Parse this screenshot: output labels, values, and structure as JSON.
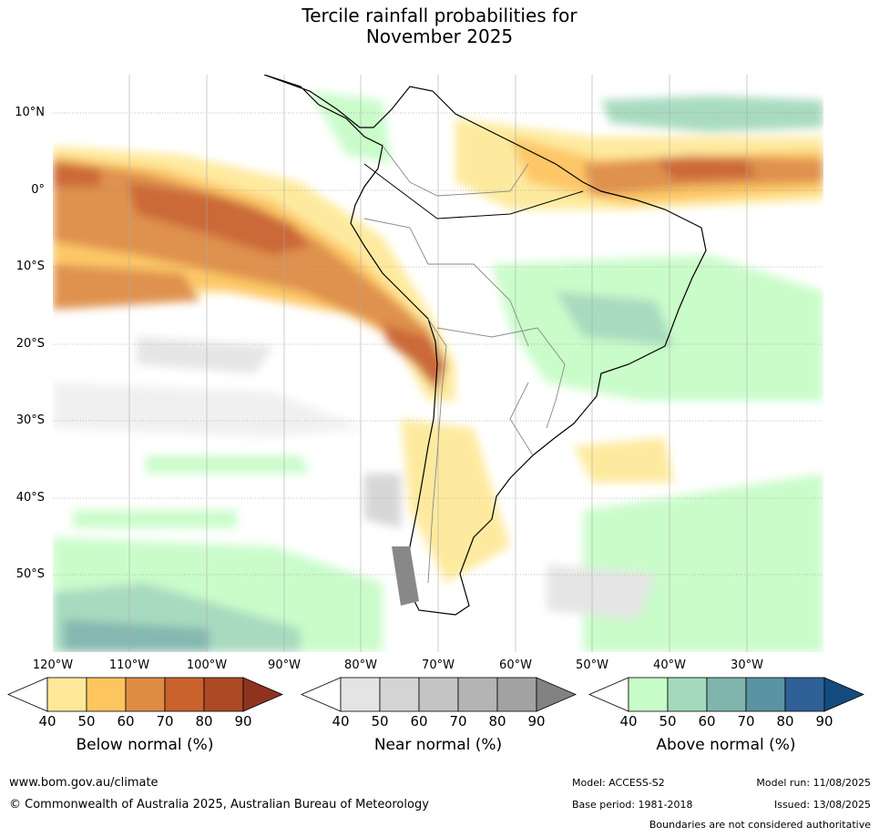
{
  "title": {
    "line1": "Tercile rainfall probabilities for",
    "line2": "November 2025"
  },
  "lat_labels": [
    "10°N",
    "0°",
    "10°S",
    "20°S",
    "30°S",
    "40°S",
    "50°S"
  ],
  "lon_labels": [
    "120°W",
    "110°W",
    "100°W",
    "90°W",
    "80°W",
    "70°W",
    "60°W",
    "50°W",
    "40°W",
    "30°W"
  ],
  "colorbars": [
    {
      "label": "Below normal (%)",
      "ticks": [
        "40",
        "50",
        "60",
        "70",
        "80",
        "90"
      ],
      "colors": [
        "#ffffff",
        "#fee99a",
        "#fdc55e",
        "#de8c44",
        "#c9622d",
        "#ad4a26",
        "#8f3320"
      ]
    },
    {
      "label": "Near normal (%)",
      "ticks": [
        "40",
        "50",
        "60",
        "70",
        "80",
        "90"
      ],
      "colors": [
        "#ffffff",
        "#e4e4e4",
        "#d4d4d4",
        "#c4c4c4",
        "#b4b4b4",
        "#a2a2a2",
        "#828282"
      ]
    },
    {
      "label": "Above normal (%)",
      "ticks": [
        "40",
        "50",
        "60",
        "70",
        "80",
        "90"
      ],
      "colors": [
        "#ffffff",
        "#c8fcc8",
        "#a4d9bc",
        "#7fb5ad",
        "#5a93a1",
        "#2f6096",
        "#134b7f"
      ]
    }
  ],
  "footer": {
    "url": "www.bom.gov.au/climate",
    "copyright": "© Commonwealth of Australia 2025, Australian Bureau of Meteorology",
    "model": "Model: ACCESS-S2",
    "model_run": "Model run: 11/08/2025",
    "base_period": "Base period: 1981-2018",
    "issued": "Issued: 13/08/2025",
    "disclaimer": "Boundaries are not considered authoritative"
  }
}
